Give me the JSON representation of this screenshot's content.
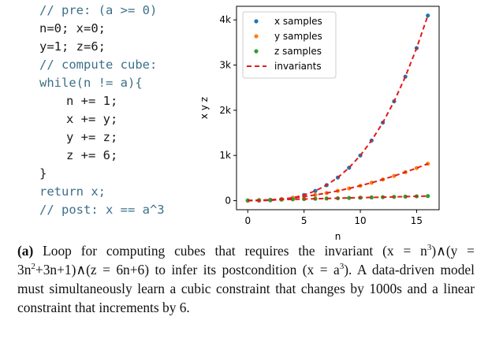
{
  "code": {
    "lines": [
      {
        "text": "// pre: (a >= 0)",
        "kind": "comment",
        "indent": 0
      },
      {
        "text": "n=0; x=0;",
        "kind": "code",
        "indent": 0
      },
      {
        "text": "y=1; z=6;",
        "kind": "code",
        "indent": 0
      },
      {
        "text": "// compute cube:",
        "kind": "comment",
        "indent": 0
      },
      {
        "text": "while(n != a){",
        "kind": "keyword",
        "indent": 0
      },
      {
        "text": "n += 1;",
        "kind": "code",
        "indent": 1
      },
      {
        "text": "x += y;",
        "kind": "code",
        "indent": 1
      },
      {
        "text": "y += z;",
        "kind": "code",
        "indent": 1
      },
      {
        "text": "z += 6;",
        "kind": "code",
        "indent": 1
      },
      {
        "text": "}",
        "kind": "code",
        "indent": 0
      },
      {
        "text": "return x;",
        "kind": "keyword",
        "indent": 0
      },
      {
        "text": "// post: x == a^3",
        "kind": "comment",
        "indent": 0
      }
    ]
  },
  "chart_data": {
    "type": "scatter",
    "xlabel": "n",
    "ylabel": "x y z",
    "xlim": [
      -1,
      17
    ],
    "ylim": [
      -200,
      4300
    ],
    "xticks": [
      0,
      5,
      10,
      15
    ],
    "xtick_labels": [
      "0",
      "5",
      "10",
      "15"
    ],
    "yticks": [
      0,
      1000,
      2000,
      3000,
      4000
    ],
    "ytick_labels": [
      "0",
      "1k",
      "2k",
      "3k",
      "4k"
    ],
    "grid": false,
    "legend_position": "top-left",
    "series": [
      {
        "name": "x samples",
        "kind": "points",
        "color": "#1f77b4",
        "x": [
          0,
          1,
          2,
          3,
          4,
          5,
          6,
          7,
          8,
          9,
          10,
          11,
          12,
          13,
          14,
          15,
          16
        ],
        "y": [
          0,
          1,
          8,
          27,
          64,
          125,
          216,
          343,
          512,
          729,
          1000,
          1331,
          1728,
          2197,
          2744,
          3375,
          4096
        ]
      },
      {
        "name": "y samples",
        "kind": "points",
        "color": "#ff7f0e",
        "x": [
          0,
          1,
          2,
          3,
          4,
          5,
          6,
          7,
          8,
          9,
          10,
          11,
          12,
          13,
          14,
          15,
          16
        ],
        "y": [
          1,
          7,
          19,
          37,
          61,
          91,
          127,
          169,
          217,
          271,
          331,
          397,
          469,
          547,
          631,
          721,
          817
        ]
      },
      {
        "name": "z samples",
        "kind": "points",
        "color": "#2ca02c",
        "x": [
          0,
          1,
          2,
          3,
          4,
          5,
          6,
          7,
          8,
          9,
          10,
          11,
          12,
          13,
          14,
          15,
          16
        ],
        "y": [
          6,
          12,
          18,
          24,
          30,
          36,
          42,
          48,
          54,
          60,
          66,
          72,
          78,
          84,
          90,
          96,
          102
        ]
      },
      {
        "name": "invariants",
        "kind": "dashed-lines",
        "color": "#e31a1c"
      }
    ]
  },
  "caption": {
    "label": "(a)",
    "text_before": "Loop for computing cubes that requires the invariant (x = n",
    "sup1": "3",
    "text_mid1": ")∧(y = 3n",
    "sup2": "2",
    "text_mid2": "+3n+1)∧(z = 6n+6) to infer its postcondition (x = a",
    "sup3": "3",
    "text_after": "). A data-driven model must simultaneously learn a cubic constraint that changes by 1000s and a linear constraint that increments by 6."
  }
}
